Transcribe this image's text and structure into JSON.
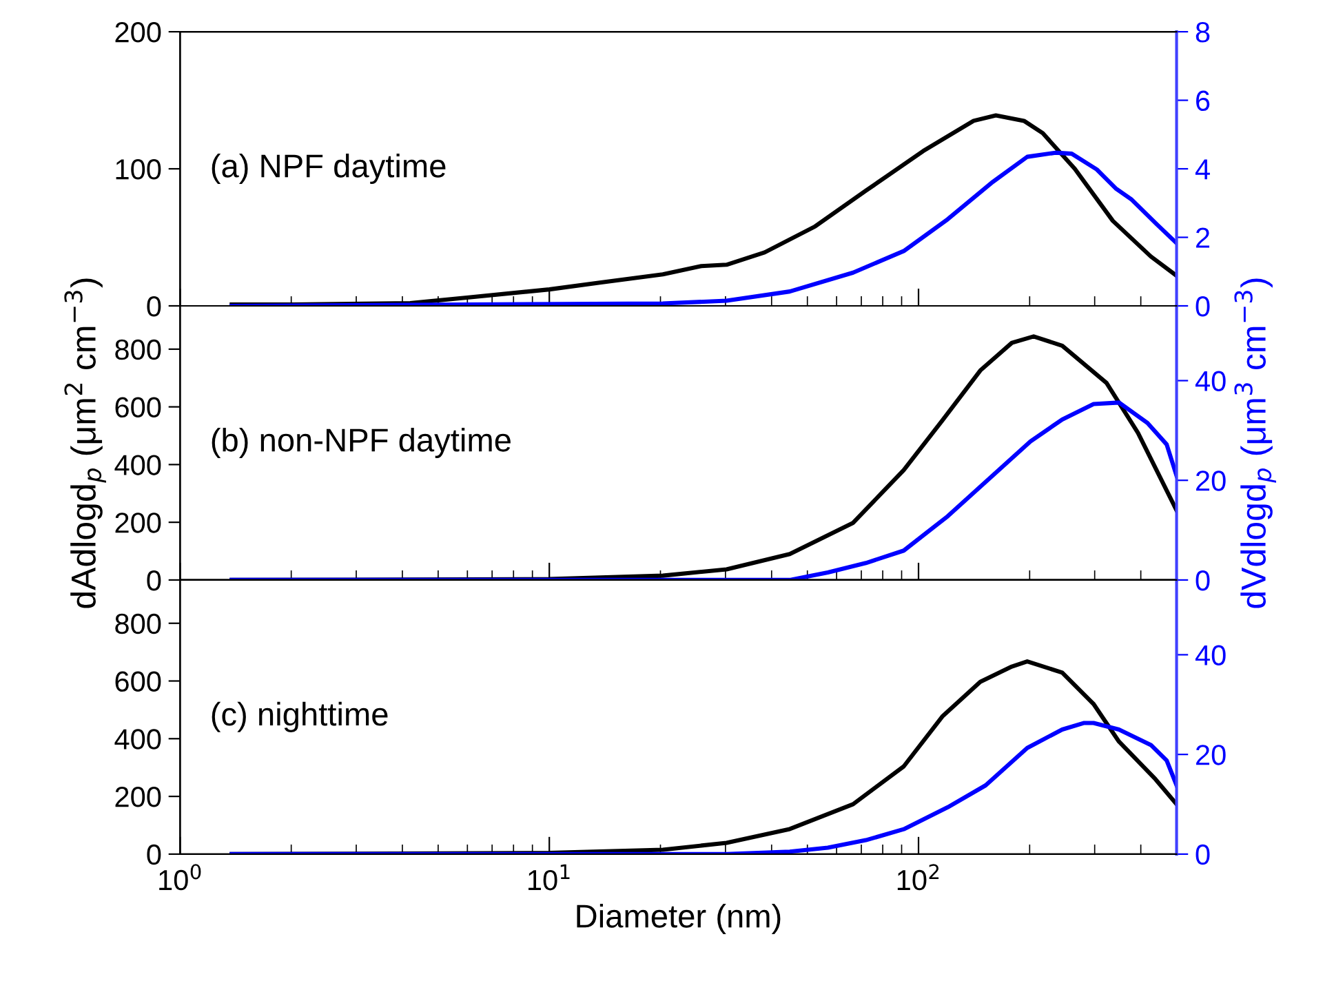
{
  "chart_data": [
    {
      "type": "line",
      "annotations": [
        "(a) NPF daytime"
      ],
      "xlim": [
        1,
        500
      ],
      "xticks": [
        {
          "value": 1,
          "label": null
        },
        {
          "value": 10,
          "label": null
        },
        {
          "value": 100,
          "label": null
        }
      ],
      "log": "x",
      "ylim": [
        0,
        200
      ],
      "yticks": [
        0,
        100,
        200
      ],
      "y2lim": [
        0,
        8
      ],
      "y2ticks": [
        0,
        2,
        4,
        6,
        8
      ],
      "tick_labels": "y",
      "series": [
        {
          "color": "#000000",
          "x": [
            1.38,
            2.02,
            4.2,
            5.98,
            10,
            13.7,
            20.3,
            25.8,
            30.2,
            38.3,
            52.5,
            72,
            103,
            141,
            162,
            193,
            217,
            265,
            336,
            426,
            500
          ],
          "values": [
            1,
            1,
            2,
            6,
            12,
            17,
            23,
            29,
            30,
            39,
            58,
            84,
            113,
            135,
            139,
            135,
            126,
            100,
            62,
            36,
            22
          ]
        },
        {
          "color": "#0000ff",
          "axis": "y2",
          "x": [
            1.38,
            20.3,
            30.2,
            44.8,
            66.5,
            91.2,
            120,
            159,
            197,
            235,
            260,
            304,
            342,
            378,
            443,
            500
          ],
          "values": [
            0,
            0.07,
            0.15,
            0.42,
            0.97,
            1.6,
            2.53,
            3.62,
            4.35,
            4.47,
            4.44,
            3.98,
            3.43,
            3.1,
            2.37,
            1.83
          ]
        }
      ]
    },
    {
      "type": "line",
      "annotations": [
        "(b) non-NPF daytime"
      ],
      "ylabel": "dAdlogd$_{p}$ (μm$^{2}$ cm$^{−3}$)",
      "y2label": "dVdlogd$_{p}$ (μm$^{3}$ cm$^{−3}$)",
      "xlim": [
        1,
        500
      ],
      "xticks": [
        {
          "value": 1,
          "label": null
        },
        {
          "value": 10,
          "label": null
        },
        {
          "value": 100,
          "label": null
        }
      ],
      "log": "x",
      "ylim": [
        0,
        950
      ],
      "yticks": [
        0,
        200,
        400,
        600,
        800
      ],
      "y2lim": [
        0,
        55
      ],
      "y2ticks": [
        0,
        20,
        40
      ],
      "tick_labels": "y",
      "series": [
        {
          "color": "#000000",
          "x": [
            1.38,
            10,
            20.3,
            30.2,
            44.8,
            66.5,
            91.2,
            116,
            147,
            179,
            205,
            245,
            323,
            393,
            500
          ],
          "values": [
            0,
            3,
            15,
            37,
            90,
            198,
            381,
            553,
            726,
            822,
            844,
            812,
            683,
            510,
            241
          ]
        },
        {
          "color": "#0000ff",
          "axis": "y2",
          "x": [
            1.38,
            44.8,
            56.8,
            72,
            91.2,
            120,
            152,
            201,
            245,
            298,
            349,
            417,
            470,
            500
          ],
          "values": [
            0,
            0,
            1.5,
            3.4,
            5.9,
            12.8,
            19.7,
            27.8,
            32.2,
            35.3,
            35.6,
            31.5,
            27.2,
            20.9
          ]
        }
      ]
    },
    {
      "type": "line",
      "annotations": [
        "(c) nighttime"
      ],
      "xlabel": "Diameter (nm)",
      "xlim": [
        1,
        500
      ],
      "xticks": [
        {
          "value": 1,
          "label": "10$^{0}$"
        },
        {
          "value": 10,
          "label": "10$^{1}$"
        },
        {
          "value": 100,
          "label": "10$^{2}$"
        }
      ],
      "log": "x",
      "ylim": [
        0,
        950
      ],
      "yticks": [
        0,
        200,
        400,
        600,
        800
      ],
      "y2lim": [
        0,
        55
      ],
      "y2ticks": [
        0,
        20,
        40
      ],
      "series": [
        {
          "color": "#000000",
          "x": [
            1.38,
            10,
            20.3,
            30.2,
            44.8,
            66.5,
            91.2,
            116,
            147,
            179,
            197,
            245,
            298,
            349,
            438,
            500
          ],
          "values": [
            0,
            4,
            15,
            39,
            87,
            173,
            304,
            477,
            597,
            650,
            668,
            629,
            520,
            390,
            260,
            173
          ]
        },
        {
          "color": "#0000ff",
          "axis": "y2",
          "x": [
            1.38,
            30.2,
            44.8,
            56.8,
            72,
            91.2,
            120,
            152,
            197,
            245,
            280,
            298,
            349,
            426,
            470,
            500
          ],
          "values": [
            0,
            0,
            0.5,
            1.3,
            2.8,
            5,
            9.4,
            13.8,
            21.3,
            25,
            26.3,
            26.3,
            25,
            21.9,
            18.8,
            13.8
          ]
        }
      ]
    }
  ]
}
